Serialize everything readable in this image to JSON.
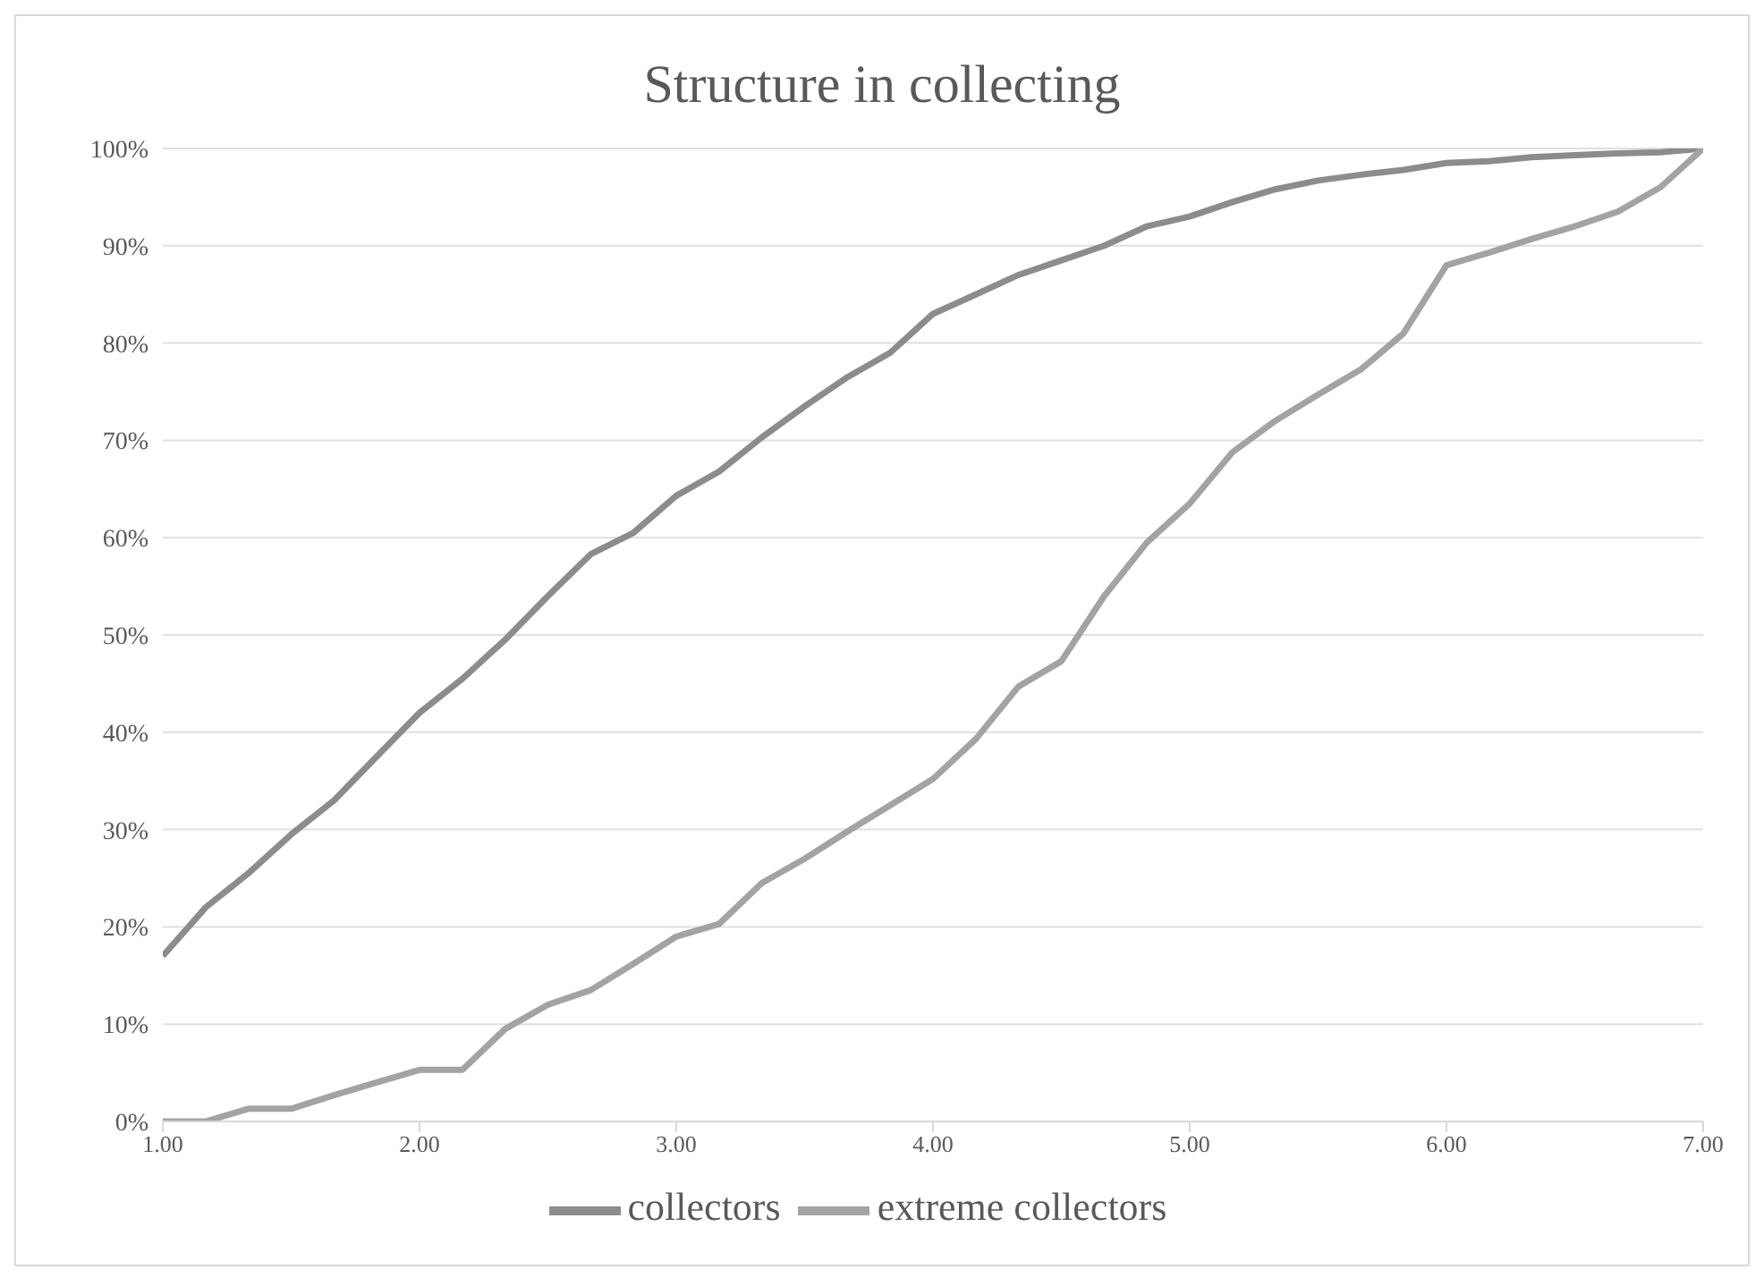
{
  "chart_data": {
    "type": "line",
    "title": "Structure in collecting",
    "x": [
      1,
      1.167,
      1.333,
      1.5,
      1.667,
      1.833,
      2,
      2.167,
      2.333,
      2.5,
      2.667,
      2.833,
      3,
      3.167,
      3.333,
      3.5,
      3.667,
      3.833,
      4,
      4.167,
      4.333,
      4.5,
      4.667,
      4.833,
      5,
      5.167,
      5.333,
      5.5,
      5.667,
      5.833,
      6,
      6.167,
      6.333,
      6.5,
      6.667,
      6.833,
      7
    ],
    "series": [
      {
        "name": "collectors",
        "color": "#8c8c8c",
        "values": [
          17,
          22,
          25.5,
          29.5,
          33,
          37.5,
          42,
          45.5,
          49.5,
          54,
          58.3,
          60.5,
          64.3,
          66.8,
          70.3,
          73.5,
          76.5,
          79,
          83,
          85,
          87,
          88.5,
          90,
          92,
          93,
          94.5,
          95.8,
          96.7,
          97.3,
          97.8,
          98.5,
          98.7,
          99.1,
          99.3,
          99.5,
          99.6,
          100
        ]
      },
      {
        "name": "extreme collectors",
        "color": "#a3a3a3",
        "values": [
          0,
          0,
          1.3,
          1.3,
          2.7,
          4,
          5.3,
          5.3,
          9.5,
          12,
          13.5,
          16.2,
          19,
          20.3,
          24.5,
          27,
          29.8,
          32.5,
          35.2,
          39.3,
          44.7,
          47.3,
          54,
          59.5,
          63.5,
          68.8,
          72,
          74.7,
          77.3,
          81,
          88,
          89.3,
          90.7,
          92,
          93.5,
          96,
          100
        ]
      }
    ],
    "xlim": [
      1,
      7
    ],
    "xticks": [
      {
        "value": 1,
        "label": "1.00"
      },
      {
        "value": 2,
        "label": "2.00"
      },
      {
        "value": 3,
        "label": "3.00"
      },
      {
        "value": 4,
        "label": "4.00"
      },
      {
        "value": 5,
        "label": "5.00"
      },
      {
        "value": 6,
        "label": "6.00"
      },
      {
        "value": 7,
        "label": "7.00"
      }
    ],
    "ylim": [
      0,
      100
    ],
    "yticks": [
      {
        "value": 0,
        "label": "0%"
      },
      {
        "value": 10,
        "label": "10%"
      },
      {
        "value": 20,
        "label": "20%"
      },
      {
        "value": 30,
        "label": "30%"
      },
      {
        "value": 40,
        "label": "40%"
      },
      {
        "value": 50,
        "label": "50%"
      },
      {
        "value": 60,
        "label": "60%"
      },
      {
        "value": 70,
        "label": "70%"
      },
      {
        "value": 80,
        "label": "80%"
      },
      {
        "value": 90,
        "label": "90%"
      },
      {
        "value": 100,
        "label": "100%"
      }
    ],
    "grid": "y",
    "legend": "bottom",
    "marker": "none",
    "line_style": "solid"
  }
}
